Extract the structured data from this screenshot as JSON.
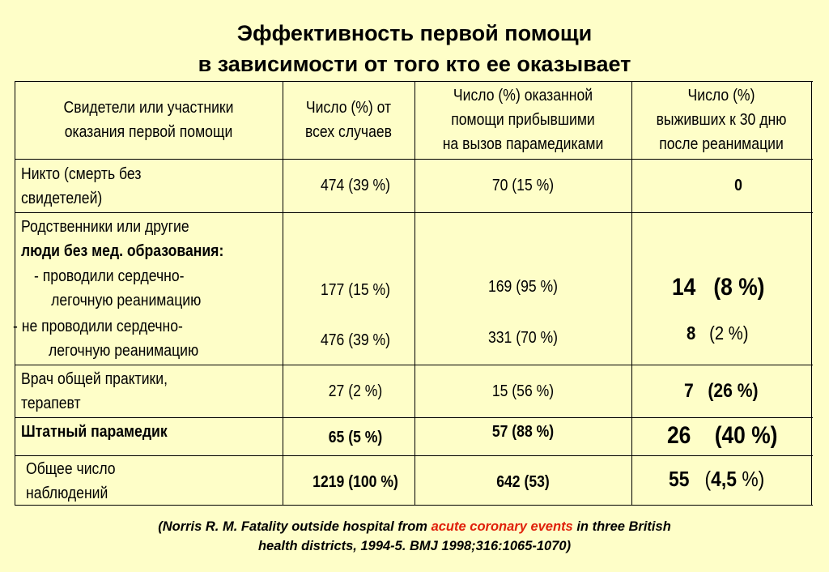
{
  "title": {
    "line1": "Эффективность первой помощи",
    "line2": "в зависимости от того кто ее оказывает"
  },
  "table": {
    "headers": [
      [
        "Свидетели или участники",
        "оказания первой помощи"
      ],
      [
        "Число (%) от",
        "всех случаев"
      ],
      [
        "Число (%) оказанной",
        "помощи прибывшими",
        "на вызов парамедиками"
      ],
      [
        "Число (%)",
        "выживших к 30 дню",
        "после реанимации"
      ]
    ],
    "row1": {
      "label": [
        "Никто (смерть без",
        "свидетелей)"
      ],
      "all": "474 (39 %)",
      "paramedic": "70 (15 %)",
      "survived": "0"
    },
    "row2": {
      "label_line1": "Родственники или другие",
      "label_line2": "люди без мед. образования:",
      "sub1": [
        "-  проводили сердечно-",
        "легочную реанимацию"
      ],
      "sub2": [
        "- не проводили сердечно-",
        "легочную реанимацию"
      ],
      "sub1_all": "177 (15 %)",
      "sub2_all": "476 (39 %)",
      "sub1_paramedic": "169 (95 %)",
      "sub2_paramedic": "331 (70 %)",
      "sub1_survived_n": "14",
      "sub1_survived_pct": "(8 %)",
      "sub2_survived_n": "8",
      "sub2_survived_pct": "(2 %)"
    },
    "row3": {
      "label": [
        "Врач общей практики,",
        "терапевт"
      ],
      "all": "27 (2 %)",
      "paramedic": "15 (56 %)",
      "survived_n": "7",
      "survived_pct": "(26 %)"
    },
    "row4": {
      "label": "Штатный парамедик",
      "all": "65 (5 %)",
      "paramedic": "57 (88 %)",
      "survived_n": "26",
      "survived_pct": "(40 %)"
    },
    "row5": {
      "label": [
        "Общее число",
        "наблюдений"
      ],
      "all": "1219 (100 %)",
      "paramedic": "642 (53)",
      "survived_n": "55",
      "survived_pct_open": "(",
      "survived_pct_value": "4,5",
      "survived_pct_close": " %)"
    }
  },
  "citation": {
    "part1": "(Norris R. M.  Fatality outside hospital from ",
    "highlight": "acute coronary events",
    "part2": " in three British",
    "line2": "health districts, 1994-5. BMJ 1998;316:1065-1070)"
  },
  "colors": {
    "background": "#fefec8",
    "citation_highlight": "#e0200a"
  }
}
